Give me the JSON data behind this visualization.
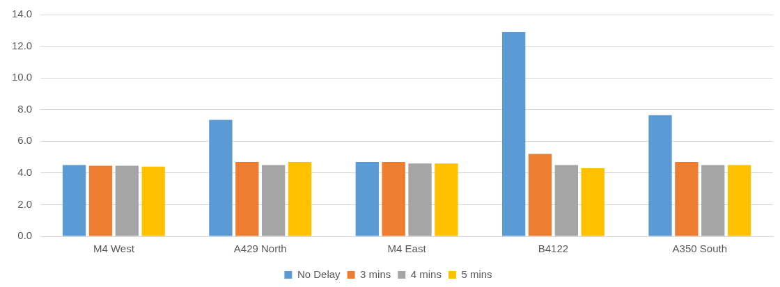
{
  "chart_data": {
    "type": "bar",
    "categories": [
      "M4 West",
      "A429 North",
      "M4 East",
      "B4122",
      "A350 South"
    ],
    "series": [
      {
        "name": "No Delay",
        "color": "#5b9bd5",
        "values": [
          4.5,
          7.35,
          4.7,
          12.9,
          7.65
        ]
      },
      {
        "name": "3 mins",
        "color": "#ed7d31",
        "values": [
          4.45,
          4.7,
          4.7,
          5.2,
          4.7
        ]
      },
      {
        "name": "4 mins",
        "color": "#a5a5a5",
        "values": [
          4.45,
          4.5,
          4.6,
          4.5,
          4.5
        ]
      },
      {
        "name": "5 mins",
        "color": "#ffc000",
        "values": [
          4.4,
          4.7,
          4.6,
          4.3,
          4.5
        ]
      }
    ],
    "ylim": [
      0,
      14
    ],
    "yticks": [
      {
        "value": 0,
        "label": "0.0"
      },
      {
        "value": 2,
        "label": "2.0"
      },
      {
        "value": 4,
        "label": "4.0"
      },
      {
        "value": 6,
        "label": "6.0"
      },
      {
        "value": 8,
        "label": "8.0"
      },
      {
        "value": 10,
        "label": "10.0"
      },
      {
        "value": 12,
        "label": "12.0"
      },
      {
        "value": 14,
        "label": "14.0"
      }
    ],
    "grid": "y",
    "legend": "bottom"
  }
}
